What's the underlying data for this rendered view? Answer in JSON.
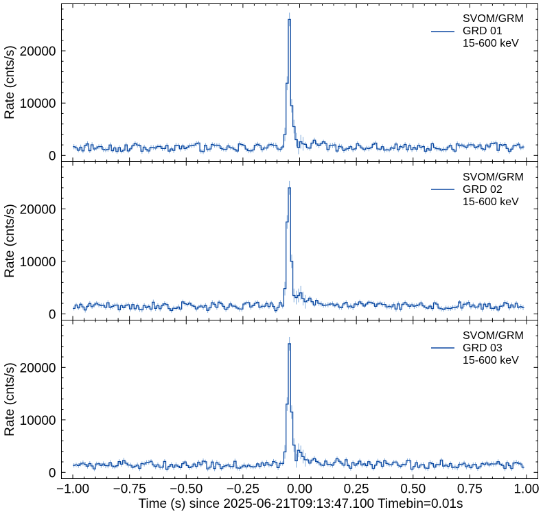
{
  "chart_data": [
    {
      "type": "line",
      "ylabel": "Rate (cnts/s)",
      "xlim": [
        -1.05,
        1.05
      ],
      "ylim": [
        -1200,
        29000
      ],
      "yticks": [
        0,
        10000,
        20000
      ],
      "ytick_labels": [
        "0",
        "10000",
        "20000"
      ],
      "legend": {
        "placement": "top-right",
        "lines": [
          "SVOM/GRM",
          "GRD 01",
          "15-600 keV"
        ]
      },
      "series": [
        {
          "name": "GRD 01",
          "baseline": 1500,
          "peak_bins": [
            {
              "x": -0.07,
              "y": 4000
            },
            {
              "x": -0.06,
              "y": 13800
            },
            {
              "x": -0.05,
              "y": 26000
            },
            {
              "x": -0.04,
              "y": 9500
            },
            {
              "x": -0.03,
              "y": 5500
            },
            {
              "x": -0.02,
              "y": 3000
            },
            {
              "x": -0.01,
              "y": 1500
            },
            {
              "x": 0.0,
              "y": 2600
            },
            {
              "x": 0.01,
              "y": 2200
            }
          ],
          "peak_error": 1300
        }
      ]
    },
    {
      "type": "line",
      "ylabel": "Rate (cnts/s)",
      "xlim": [
        -1.05,
        1.05
      ],
      "ylim": [
        -1200,
        29000
      ],
      "yticks": [
        0,
        10000,
        20000
      ],
      "ytick_labels": [
        "0",
        "10000",
        "20000"
      ],
      "legend": {
        "placement": "top-right",
        "lines": [
          "SVOM/GRM",
          "GRD 02",
          "15-600 keV"
        ]
      },
      "series": [
        {
          "name": "GRD 02",
          "baseline": 1450,
          "peak_bins": [
            {
              "x": -0.07,
              "y": 4800
            },
            {
              "x": -0.06,
              "y": 17500
            },
            {
              "x": -0.05,
              "y": 24000
            },
            {
              "x": -0.04,
              "y": 10000
            },
            {
              "x": -0.03,
              "y": 3500
            },
            {
              "x": -0.02,
              "y": 3100
            },
            {
              "x": -0.01,
              "y": 3500
            },
            {
              "x": 0.0,
              "y": 4000
            },
            {
              "x": 0.01,
              "y": 2900
            },
            {
              "x": 0.02,
              "y": 2300
            }
          ],
          "peak_error": 1300
        }
      ]
    },
    {
      "type": "line",
      "ylabel": "Rate (cnts/s)",
      "xlabel": "Time (s) since 2025-06-21T09:13:47.100 Timebin=0.01s",
      "xlim": [
        -1.05,
        1.05
      ],
      "ylim": [
        -1200,
        29000
      ],
      "xticks": [
        -1.0,
        -0.75,
        -0.5,
        -0.25,
        0.0,
        0.25,
        0.5,
        0.75,
        1.0
      ],
      "xtick_labels": [
        "−1.00",
        "−0.75",
        "−0.50",
        "−0.25",
        "0.00",
        "0.25",
        "0.50",
        "0.75",
        "1.00"
      ],
      "yticks": [
        0,
        10000,
        20000
      ],
      "ytick_labels": [
        "0",
        "10000",
        "20000"
      ],
      "legend": {
        "placement": "top-right",
        "lines": [
          "SVOM/GRM",
          "GRD 03",
          "15-600 keV"
        ]
      },
      "series": [
        {
          "name": "GRD 03",
          "baseline": 1400,
          "peak_bins": [
            {
              "x": -0.07,
              "y": 3900
            },
            {
              "x": -0.06,
              "y": 13000
            },
            {
              "x": -0.05,
              "y": 24500
            },
            {
              "x": -0.04,
              "y": 11500
            },
            {
              "x": -0.03,
              "y": 5200
            },
            {
              "x": -0.02,
              "y": 2200
            },
            {
              "x": -0.01,
              "y": 4200
            },
            {
              "x": 0.0,
              "y": 3800
            },
            {
              "x": 0.01,
              "y": 3000
            },
            {
              "x": 0.02,
              "y": 2400
            }
          ],
          "peak_error": 1300
        }
      ]
    }
  ],
  "colors": {
    "line": "#0a47a0",
    "error": "#6f9fd6"
  }
}
